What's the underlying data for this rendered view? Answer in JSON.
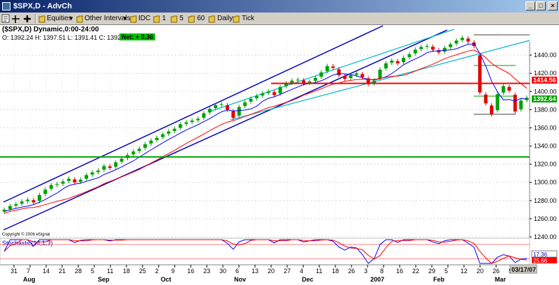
{
  "window": {
    "title": "$SPX,D - AdvCh",
    "min_glyph": "_",
    "max_glyph": "□",
    "close_glyph": "×"
  },
  "toolbar": {
    "equities_label": "Equities",
    "intervals_label": "Other Intervals",
    "idc_label": "IDC",
    "i1_label": "1",
    "i5_label": "5",
    "i60_label": "60",
    "daily_label": "Daily",
    "tick_label": "Tick"
  },
  "info": {
    "symbol_line": "($SPX,D) Dynamic,0:00-24:00",
    "ohlc_line": "O: 1392.24  H: 1397.51  L: 1391.41  C: 1392.64",
    "net": "Net: + 0.36"
  },
  "chart": {
    "copyright": "Copyright © 2006 eSignal",
    "indicator_label": "Stochastic(14,1,3)",
    "price_axis": [
      "1460.00",
      "1440.00",
      "1420.00",
      "1400.00",
      "1380.00",
      "1360.00",
      "1340.00",
      "1320.00",
      "1300.00",
      "1280.00",
      "1260.00",
      "1240.00"
    ],
    "price_tag": "1414.56",
    "last_tag": "1392.64",
    "stoch_tag1": "17.36",
    "stoch_tag2": "25.66",
    "date_tag": "03/17/07",
    "day_ticks": [
      "31",
      "7",
      "14",
      "21",
      "28",
      "5",
      "11",
      "18",
      "25",
      "2",
      "9",
      "16",
      "23",
      "30",
      "6",
      "13",
      "20",
      "27",
      "4",
      "11",
      "18",
      "26",
      "3",
      "8",
      "16",
      "22",
      "29",
      "5",
      "12",
      "20",
      "26",
      "5",
      "12"
    ],
    "month_labels": [
      "Aug",
      "Sep",
      "Oct",
      "Nov",
      "Dec",
      "2007",
      "Feb",
      "Mar"
    ],
    "colors": {
      "up": "#00a000",
      "down": "#e00000",
      "channel": "#0000c0",
      "channel2": "#00b8c8",
      "support": "#00a000",
      "resistance": "#ff0000"
    }
  },
  "chart_data": {
    "type": "candlestick",
    "title": "($SPX,D) Dynamic,0:00-24:00",
    "ylim": [
      1240,
      1470
    ],
    "last": {
      "open": 1392.24,
      "high": 1397.51,
      "low": 1391.41,
      "close": 1392.64
    },
    "levels": {
      "resistance": 1409,
      "support": 1328
    },
    "approx_closes": [
      1270,
      1274,
      1276,
      1279,
      1281,
      1278,
      1286,
      1292,
      1297,
      1298,
      1301,
      1304,
      1300,
      1303,
      1308,
      1311,
      1313,
      1318,
      1316,
      1322,
      1326,
      1330,
      1334,
      1337,
      1342,
      1346,
      1349,
      1353,
      1356,
      1359,
      1364,
      1366,
      1368,
      1370,
      1376,
      1381,
      1385,
      1386,
      1380,
      1371,
      1383,
      1388,
      1392,
      1395,
      1398,
      1400,
      1396,
      1405,
      1409,
      1412,
      1413,
      1409,
      1411,
      1415,
      1421,
      1428,
      1426,
      1418,
      1414,
      1418,
      1420,
      1416,
      1408,
      1412,
      1424,
      1431,
      1434,
      1431,
      1437,
      1441,
      1446,
      1449,
      1450,
      1446,
      1443,
      1448,
      1452,
      1456,
      1459,
      1455,
      1450,
      1399,
      1387,
      1375,
      1397,
      1406,
      1401,
      1378,
      1390,
      1393
    ]
  }
}
